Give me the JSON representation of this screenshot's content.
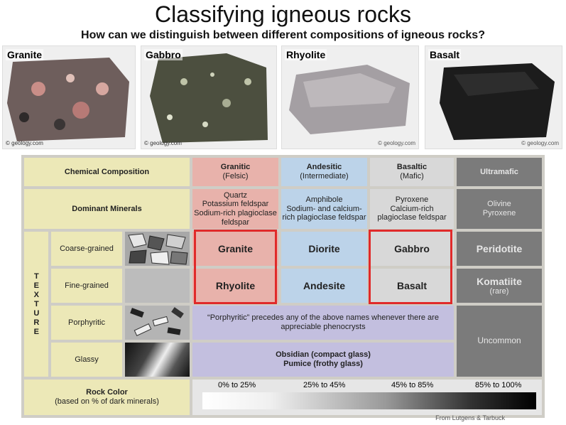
{
  "header": {
    "title": "Classifying igneous rocks",
    "subtitle": "How can we distinguish between different compositions of igneous rocks?"
  },
  "photos": [
    {
      "label": "Granite",
      "credit": "© geology.com"
    },
    {
      "label": "Gabbro",
      "credit": "© geology.com"
    },
    {
      "label": "Rhyolite",
      "credit": "© geology.com"
    },
    {
      "label": "Basalt",
      "credit": "© geology.com"
    }
  ],
  "table": {
    "chemical_composition": "Chemical Composition",
    "dominant_minerals": "Dominant Minerals",
    "columns": [
      {
        "name": "Granitic",
        "sub": "(Felsic)",
        "minerals": "Quartz\nPotassium feldspar\nSodium-rich plagioclase feldspar"
      },
      {
        "name": "Andesitic",
        "sub": "(Intermediate)",
        "minerals": "Amphibole\nSodium- and calcium-rich plagioclase feldspar"
      },
      {
        "name": "Basaltic",
        "sub": "(Mafic)",
        "minerals": "Pyroxene\nCalcium-rich plagioclase feldspar"
      },
      {
        "name": "Ultramafic",
        "sub": "",
        "minerals": "Olivine\nPyroxene"
      }
    ],
    "texture_label": "TEXTURE",
    "rows": [
      {
        "texture": "Coarse-grained",
        "rocks": [
          "Granite",
          "Diorite",
          "Gabbro",
          "Peridotite"
        ]
      },
      {
        "texture": "Fine-grained",
        "rocks": [
          "Rhyolite",
          "Andesite",
          "Basalt",
          "Komatiite"
        ]
      }
    ],
    "komatiite_note": "(rare)",
    "porphyritic": "Porphyritic",
    "porphyritic_note": "“Porphyritic” precedes any of the above names whenever there are appreciable phenocrysts",
    "glassy": "Glassy",
    "obsidian": "Obsidian (compact glass)",
    "pumice": "Pumice (frothy glass)",
    "uncommon": "Uncommon",
    "rock_color": "Rock Color",
    "rock_color_sub": "(based on % of dark minerals)",
    "color_ranges": [
      "0% to 25%",
      "25% to 45%",
      "45% to 85%",
      "85% to 100%"
    ],
    "source": "From Lutgens & Tarbuck"
  }
}
